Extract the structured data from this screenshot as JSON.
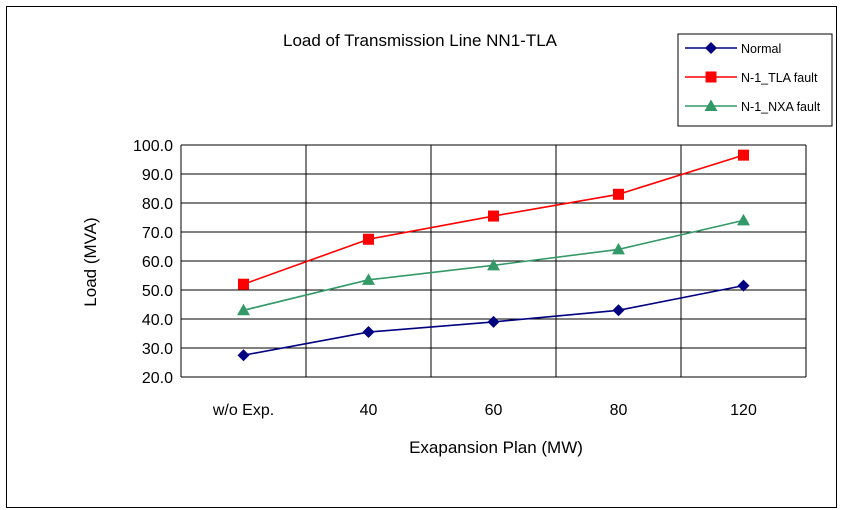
{
  "chart_data": {
    "type": "line",
    "title": "Load of Transmission Line NN1-TLA",
    "xlabel": "Exapansion Plan (MW)",
    "ylabel": "Load (MVA)",
    "categories": [
      "w/o Exp.",
      "40",
      "60",
      "80",
      "120"
    ],
    "ylim": [
      20.0,
      100.0
    ],
    "yticks": [
      "20.0",
      "30.0",
      "40.0",
      "50.0",
      "60.0",
      "70.0",
      "80.0",
      "90.0",
      "100.0"
    ],
    "grid": true,
    "legend_position": "top-right",
    "series": [
      {
        "name": "Normal",
        "color": "#000080",
        "marker": "diamond",
        "values": [
          27.5,
          35.5,
          39.0,
          43.0,
          51.5
        ]
      },
      {
        "name": "N-1_TLA fault",
        "color": "#ff0000",
        "marker": "square",
        "values": [
          52.0,
          67.5,
          75.5,
          83.0,
          96.5
        ]
      },
      {
        "name": "N-1_NXA fault",
        "color": "#339966",
        "marker": "triangle",
        "values": [
          43.0,
          53.5,
          58.5,
          64.0,
          74.0
        ]
      }
    ]
  }
}
